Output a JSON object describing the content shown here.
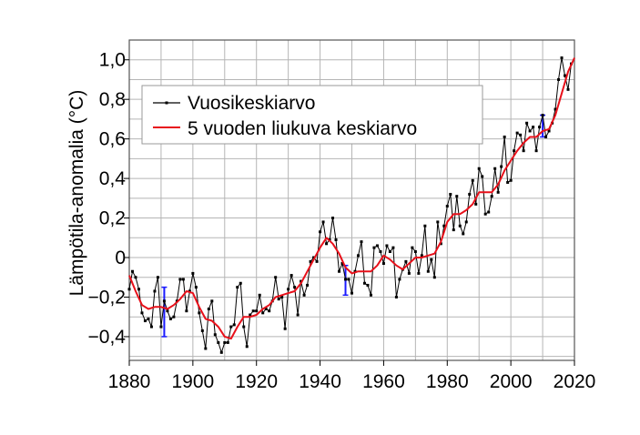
{
  "chart_data": {
    "type": "line",
    "title": "",
    "xlabel": "",
    "ylabel": "Lämpötila-anomalia (°C)",
    "xlim": [
      1880,
      2020
    ],
    "ylim": [
      -0.52,
      1.1
    ],
    "grid": true,
    "legend_position": "top-left",
    "x_ticks": [
      1880,
      1900,
      1920,
      1940,
      1960,
      1980,
      2000,
      2020
    ],
    "x_tick_labels": [
      "1880",
      "1900",
      "1920",
      "1940",
      "1960",
      "1980",
      "2000",
      "2020"
    ],
    "y_ticks": [
      -0.4,
      -0.2,
      0,
      0.2,
      0.4,
      0.6,
      0.8,
      1.0
    ],
    "y_tick_labels": [
      "−0,4",
      "−0,2",
      "0",
      "0,2",
      "0,4",
      "0,6",
      "0,8",
      "1,0"
    ],
    "colors": {
      "annual": "#000000",
      "smooth": "#e8101a",
      "error": "#1a1aff",
      "grid": "#b5b5b5"
    },
    "series": [
      {
        "name": "Vuosikeskiarvo",
        "x": [
          1880,
          1881,
          1882,
          1883,
          1884,
          1885,
          1886,
          1887,
          1888,
          1889,
          1890,
          1891,
          1892,
          1893,
          1894,
          1895,
          1896,
          1897,
          1898,
          1899,
          1900,
          1901,
          1902,
          1903,
          1904,
          1905,
          1906,
          1907,
          1908,
          1909,
          1910,
          1911,
          1912,
          1913,
          1914,
          1915,
          1916,
          1917,
          1918,
          1919,
          1920,
          1921,
          1922,
          1923,
          1924,
          1925,
          1926,
          1927,
          1928,
          1929,
          1930,
          1931,
          1932,
          1933,
          1934,
          1935,
          1936,
          1937,
          1938,
          1939,
          1940,
          1941,
          1942,
          1943,
          1944,
          1945,
          1946,
          1947,
          1948,
          1949,
          1950,
          1951,
          1952,
          1953,
          1954,
          1955,
          1956,
          1957,
          1958,
          1959,
          1960,
          1961,
          1962,
          1963,
          1964,
          1965,
          1966,
          1967,
          1968,
          1969,
          1970,
          1971,
          1972,
          1973,
          1974,
          1975,
          1976,
          1977,
          1978,
          1979,
          1980,
          1981,
          1982,
          1983,
          1984,
          1985,
          1986,
          1987,
          1988,
          1989,
          1990,
          1991,
          1992,
          1993,
          1994,
          1995,
          1996,
          1997,
          1998,
          1999,
          2000,
          2001,
          2002,
          2003,
          2004,
          2005,
          2006,
          2007,
          2008,
          2009,
          2010,
          2011,
          2012,
          2013,
          2014,
          2015,
          2016,
          2017,
          2018,
          2019
        ],
        "values": [
          -0.16,
          -0.07,
          -0.1,
          -0.16,
          -0.28,
          -0.32,
          -0.31,
          -0.35,
          -0.17,
          -0.1,
          -0.35,
          -0.22,
          -0.27,
          -0.31,
          -0.3,
          -0.22,
          -0.11,
          -0.11,
          -0.27,
          -0.17,
          -0.08,
          -0.15,
          -0.28,
          -0.37,
          -0.46,
          -0.26,
          -0.22,
          -0.39,
          -0.43,
          -0.48,
          -0.43,
          -0.43,
          -0.35,
          -0.34,
          -0.15,
          -0.13,
          -0.35,
          -0.45,
          -0.29,
          -0.27,
          -0.27,
          -0.19,
          -0.28,
          -0.26,
          -0.27,
          -0.22,
          -0.1,
          -0.21,
          -0.2,
          -0.36,
          -0.16,
          -0.09,
          -0.15,
          -0.29,
          -0.12,
          -0.19,
          -0.14,
          -0.02,
          -0.0,
          -0.02,
          0.13,
          0.18,
          0.07,
          0.09,
          0.2,
          0.09,
          -0.07,
          -0.03,
          -0.11,
          -0.11,
          -0.18,
          -0.07,
          0.01,
          0.08,
          -0.13,
          -0.14,
          -0.19,
          0.05,
          0.06,
          0.03,
          -0.03,
          0.06,
          0.03,
          0.05,
          -0.2,
          -0.11,
          -0.06,
          -0.02,
          -0.08,
          0.05,
          0.03,
          -0.08,
          0.01,
          0.16,
          -0.07,
          -0.01,
          -0.1,
          0.18,
          0.07,
          0.16,
          0.26,
          0.32,
          0.14,
          0.31,
          0.16,
          0.12,
          0.18,
          0.32,
          0.39,
          0.27,
          0.45,
          0.41,
          0.22,
          0.23,
          0.31,
          0.45,
          0.33,
          0.46,
          0.61,
          0.38,
          0.39,
          0.54,
          0.63,
          0.62,
          0.54,
          0.68,
          0.64,
          0.66,
          0.54,
          0.66,
          0.72,
          0.61,
          0.64,
          0.68,
          0.75,
          0.9,
          1.01,
          0.92,
          0.85,
          0.98
        ]
      },
      {
        "name": "5 vuoden liukuva keskiarvo",
        "x": [
          1880,
          1882,
          1884,
          1886,
          1888,
          1890,
          1892,
          1894,
          1896,
          1898,
          1900,
          1902,
          1904,
          1906,
          1908,
          1910,
          1912,
          1914,
          1916,
          1918,
          1920,
          1922,
          1924,
          1926,
          1928,
          1930,
          1932,
          1934,
          1936,
          1938,
          1940,
          1942,
          1944,
          1946,
          1948,
          1950,
          1952,
          1954,
          1956,
          1958,
          1960,
          1962,
          1964,
          1966,
          1968,
          1970,
          1972,
          1974,
          1976,
          1978,
          1980,
          1982,
          1984,
          1986,
          1988,
          1990,
          1992,
          1994,
          1996,
          1998,
          2000,
          2002,
          2004,
          2006,
          2008,
          2010,
          2012,
          2014,
          2016,
          2018,
          2020
        ],
        "values": [
          -0.09,
          -0.17,
          -0.24,
          -0.26,
          -0.25,
          -0.25,
          -0.26,
          -0.24,
          -0.21,
          -0.17,
          -0.18,
          -0.25,
          -0.31,
          -0.32,
          -0.35,
          -0.4,
          -0.41,
          -0.35,
          -0.3,
          -0.3,
          -0.29,
          -0.26,
          -0.24,
          -0.2,
          -0.19,
          -0.18,
          -0.17,
          -0.13,
          -0.07,
          -0.01,
          0.05,
          0.1,
          0.07,
          0.02,
          -0.05,
          -0.08,
          -0.07,
          -0.07,
          -0.07,
          -0.04,
          0.01,
          -0.01,
          -0.04,
          -0.06,
          -0.03,
          0.0,
          0.0,
          0.01,
          0.02,
          0.08,
          0.18,
          0.22,
          0.22,
          0.24,
          0.27,
          0.33,
          0.33,
          0.33,
          0.37,
          0.44,
          0.49,
          0.54,
          0.58,
          0.61,
          0.61,
          0.64,
          0.65,
          0.72,
          0.83,
          0.94,
          1.01
        ]
      }
    ],
    "error_bars": [
      {
        "x": 1891,
        "low": -0.4,
        "high": -0.15
      },
      {
        "x": 1948,
        "low": -0.19,
        "high": -0.04
      },
      {
        "x": 2010,
        "low": 0.61,
        "high": 0.72
      }
    ]
  }
}
